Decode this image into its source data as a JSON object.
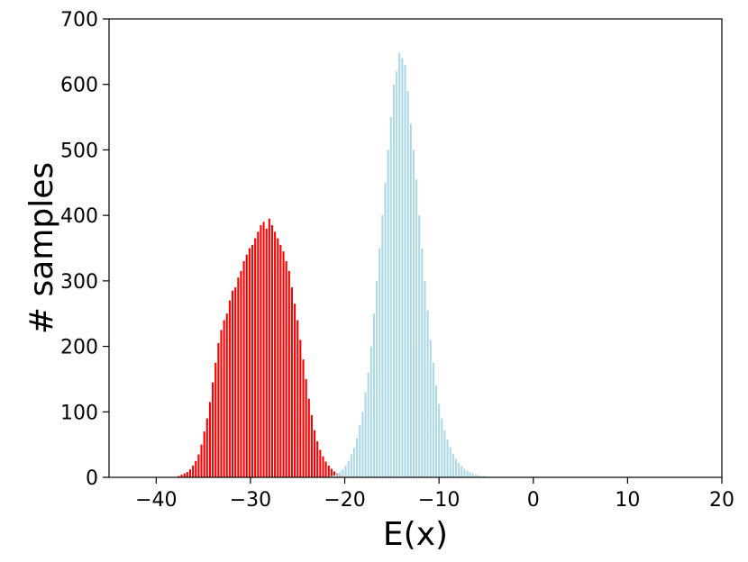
{
  "chart_data": {
    "type": "bar",
    "title": "",
    "xlabel": "E(x)",
    "ylabel": "# samples",
    "xlim": [
      -45,
      20
    ],
    "ylim": [
      0,
      700
    ],
    "xticks": [
      -40,
      -30,
      -20,
      -10,
      0,
      10,
      20
    ],
    "xtick_labels": [
      "−40",
      "−30",
      "−20",
      "−10",
      "0",
      "10",
      "20"
    ],
    "yticks": [
      0,
      100,
      200,
      300,
      400,
      500,
      600,
      700
    ],
    "ytick_labels": [
      "0",
      "100",
      "200",
      "300",
      "400",
      "500",
      "600",
      "700"
    ],
    "grid": false,
    "bar_width": 0.2,
    "series": [
      {
        "color": "#ff0000",
        "x": [
          -37.6,
          -37.3,
          -37.0,
          -36.7,
          -36.4,
          -36.1,
          -35.8,
          -35.5,
          -35.2,
          -34.9,
          -34.6,
          -34.3,
          -34.0,
          -33.7,
          -33.4,
          -33.1,
          -32.8,
          -32.5,
          -32.2,
          -31.9,
          -31.6,
          -31.3,
          -31.0,
          -30.7,
          -30.4,
          -30.1,
          -29.8,
          -29.5,
          -29.2,
          -28.9,
          -28.6,
          -28.3,
          -28.0,
          -27.7,
          -27.4,
          -27.1,
          -26.8,
          -26.5,
          -26.2,
          -25.9,
          -25.6,
          -25.3,
          -25.0,
          -24.7,
          -24.4,
          -24.1,
          -23.8,
          -23.5,
          -23.2,
          -22.9,
          -22.6,
          -22.3,
          -22.0,
          -21.7,
          -21.4,
          -21.1,
          -20.8,
          -20.5,
          -20.2,
          -19.9,
          -19.6,
          -19.3,
          -19.0,
          -18.7,
          -18.4,
          -18.1
        ],
        "values": [
          2,
          4,
          6,
          8,
          12,
          18,
          25,
          35,
          50,
          70,
          90,
          115,
          145,
          175,
          205,
          225,
          240,
          250,
          270,
          285,
          290,
          305,
          315,
          330,
          340,
          350,
          355,
          365,
          375,
          385,
          390,
          380,
          395,
          385,
          375,
          365,
          355,
          345,
          330,
          315,
          290,
          265,
          240,
          210,
          180,
          150,
          120,
          95,
          72,
          55,
          42,
          32,
          24,
          18,
          13,
          9,
          6,
          4,
          3,
          2,
          1,
          1,
          1,
          0,
          0,
          0
        ]
      },
      {
        "color": "#add8e6",
        "x": [
          -21.7,
          -21.4,
          -21.1,
          -20.8,
          -20.5,
          -20.2,
          -19.9,
          -19.6,
          -19.3,
          -19.0,
          -18.7,
          -18.4,
          -18.1,
          -17.8,
          -17.5,
          -17.2,
          -16.9,
          -16.6,
          -16.3,
          -16.0,
          -15.7,
          -15.4,
          -15.1,
          -14.8,
          -14.5,
          -14.2,
          -13.9,
          -13.6,
          -13.3,
          -13.0,
          -12.7,
          -12.4,
          -12.1,
          -11.8,
          -11.5,
          -11.2,
          -10.9,
          -10.6,
          -10.3,
          -10.0,
          -9.7,
          -9.4,
          -9.1,
          -8.8,
          -8.5,
          -8.2,
          -7.9,
          -7.6,
          -7.3,
          -7.0,
          -6.7,
          -6.4,
          -6.1,
          -5.8,
          -5.5,
          -5.2,
          -4.9,
          -4.6,
          -4.3,
          -4.0
        ],
        "values": [
          1,
          2,
          3,
          5,
          8,
          12,
          18,
          25,
          35,
          45,
          60,
          80,
          100,
          130,
          160,
          200,
          250,
          300,
          350,
          400,
          450,
          500,
          550,
          600,
          620,
          648,
          640,
          630,
          590,
          540,
          500,
          455,
          400,
          350,
          300,
          255,
          210,
          175,
          140,
          112,
          90,
          72,
          58,
          46,
          36,
          28,
          22,
          17,
          13,
          10,
          8,
          6,
          4,
          3,
          2,
          2,
          1,
          1,
          0,
          0
        ]
      }
    ]
  }
}
